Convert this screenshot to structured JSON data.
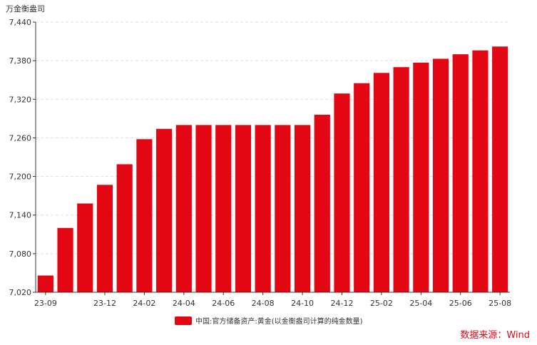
{
  "chart_data": {
    "type": "bar",
    "unit_label": "万金衡盎司",
    "categories": [
      "23-09",
      "23-10",
      "23-11",
      "23-12",
      "24-01",
      "24-02",
      "24-03",
      "24-04",
      "24-05",
      "24-06",
      "24-07",
      "24-08",
      "24-09",
      "24-10",
      "24-11",
      "24-12",
      "25-01",
      "25-02",
      "25-03",
      "25-04",
      "25-05",
      "25-06",
      "25-07",
      "25-08"
    ],
    "x_tick_labels": [
      "23-09",
      "",
      "",
      "23-12",
      "",
      "24-02",
      "",
      "24-04",
      "",
      "24-06",
      "",
      "24-08",
      "",
      "24-10",
      "",
      "24-12",
      "",
      "25-02",
      "",
      "25-04",
      "",
      "25-06",
      "",
      "25-08"
    ],
    "series": [
      {
        "name": "中国:官方储备资产:黄金(以金衡盎司计算的纯金数量)",
        "color": "#e30613",
        "values": [
          7046,
          7120,
          7158,
          7187,
          7219,
          7258,
          7274,
          7280,
          7280,
          7280,
          7280,
          7280,
          7280,
          7280,
          7296,
          7329,
          7345,
          7361,
          7370,
          7377,
          7383,
          7390,
          7396,
          7402
        ]
      }
    ],
    "ylim": [
      7020,
      7440
    ],
    "y_ticks": [
      "7,020",
      "7,080",
      "7,140",
      "7,200",
      "7,260",
      "7,320",
      "7,380",
      "7,440"
    ],
    "y_tick_values": [
      7020,
      7080,
      7140,
      7200,
      7260,
      7320,
      7380,
      7440
    ],
    "grid": "horizontal-dashed",
    "legend_position": "bottom-center"
  },
  "source": "数据来源：Wind"
}
